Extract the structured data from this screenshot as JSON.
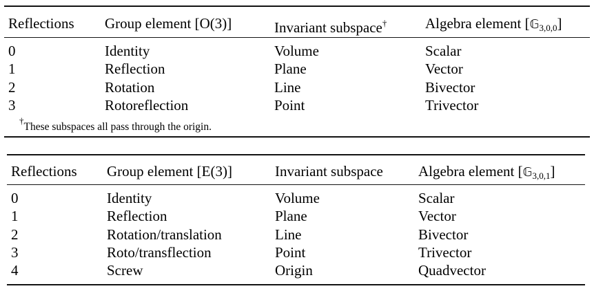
{
  "table1": {
    "headers": {
      "reflections": "Reflections",
      "group_prefix": "Group element [",
      "group_name": "O(3)",
      "group_suffix": "]",
      "subspace": "Invariant subspace",
      "subspace_mark": "†",
      "algebra_prefix": "Algebra element [",
      "algebra_symbol": "𝔾",
      "algebra_sub": "3,0,0",
      "algebra_suffix": "]"
    },
    "rows": [
      {
        "reflections": "0",
        "group": "Identity",
        "subspace": "Volume",
        "algebra": "Scalar"
      },
      {
        "reflections": "1",
        "group": "Reflection",
        "subspace": "Plane",
        "algebra": "Vector"
      },
      {
        "reflections": "2",
        "group": "Rotation",
        "subspace": "Line",
        "algebra": "Bivector"
      },
      {
        "reflections": "3",
        "group": "Rotoreflection",
        "subspace": "Point",
        "algebra": "Trivector"
      }
    ],
    "footnote_mark": "†",
    "footnote": "These subspaces all pass through the origin."
  },
  "table2": {
    "headers": {
      "reflections": "Reflections",
      "group_prefix": "Group element [",
      "group_name": "E(3)",
      "group_suffix": "]",
      "subspace": "Invariant subspace",
      "algebra_prefix": "Algebra element [",
      "algebra_symbol": "𝔾",
      "algebra_sub": "3,0,1",
      "algebra_suffix": "]"
    },
    "rows": [
      {
        "reflections": "0",
        "group": "Identity",
        "subspace": "Volume",
        "algebra": "Scalar"
      },
      {
        "reflections": "1",
        "group": "Reflection",
        "subspace": "Plane",
        "algebra": "Vector"
      },
      {
        "reflections": "2",
        "group": "Rotation/translation",
        "subspace": "Line",
        "algebra": "Bivector"
      },
      {
        "reflections": "3",
        "group": "Roto/transflection",
        "subspace": "Point",
        "algebra": "Trivector"
      },
      {
        "reflections": "4",
        "group": "Screw",
        "subspace": "Origin",
        "algebra": "Quadvector"
      }
    ]
  }
}
